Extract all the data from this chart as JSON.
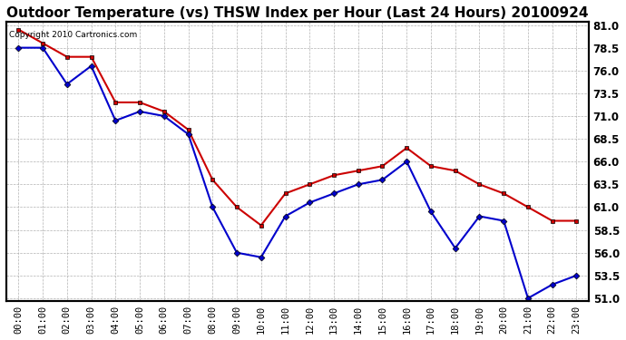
{
  "title": "Outdoor Temperature (vs) THSW Index per Hour (Last 24 Hours) 20100924",
  "copyright": "Copyright 2010 Cartronics.com",
  "hours": [
    0,
    1,
    2,
    3,
    4,
    5,
    6,
    7,
    8,
    9,
    10,
    11,
    12,
    13,
    14,
    15,
    16,
    17,
    18,
    19,
    20,
    21,
    22,
    23
  ],
  "hour_labels": [
    "00:00",
    "01:00",
    "02:00",
    "03:00",
    "04:00",
    "05:00",
    "06:00",
    "07:00",
    "08:00",
    "09:00",
    "10:00",
    "11:00",
    "12:00",
    "13:00",
    "14:00",
    "15:00",
    "16:00",
    "17:00",
    "18:00",
    "19:00",
    "20:00",
    "21:00",
    "22:00",
    "23:00"
  ],
  "red_temp": [
    80.5,
    79.0,
    77.5,
    77.5,
    72.5,
    72.5,
    71.5,
    69.5,
    64.0,
    61.0,
    59.0,
    62.5,
    63.5,
    64.5,
    65.0,
    65.5,
    67.5,
    65.5,
    65.0,
    63.5,
    62.5,
    61.0,
    59.5,
    59.5
  ],
  "blue_thsw": [
    78.5,
    78.5,
    74.5,
    76.5,
    70.5,
    71.5,
    71.0,
    69.0,
    61.0,
    56.0,
    55.5,
    60.0,
    61.5,
    62.5,
    63.5,
    64.0,
    66.0,
    60.5,
    56.5,
    60.0,
    59.5,
    51.0,
    52.5,
    53.5
  ],
  "red_color": "#cc0000",
  "blue_color": "#0000cc",
  "background_color": "#ffffff",
  "plot_bg_color": "#ffffff",
  "grid_color": "#aaaaaa",
  "ylim_min": 51.0,
  "ylim_max": 81.0,
  "yticks": [
    51.0,
    53.5,
    56.0,
    58.5,
    61.0,
    63.5,
    66.0,
    68.5,
    71.0,
    73.5,
    76.0,
    78.5,
    81.0
  ],
  "title_fontsize": 11,
  "tick_fontsize": 7.5,
  "copyright_fontsize": 6.5
}
